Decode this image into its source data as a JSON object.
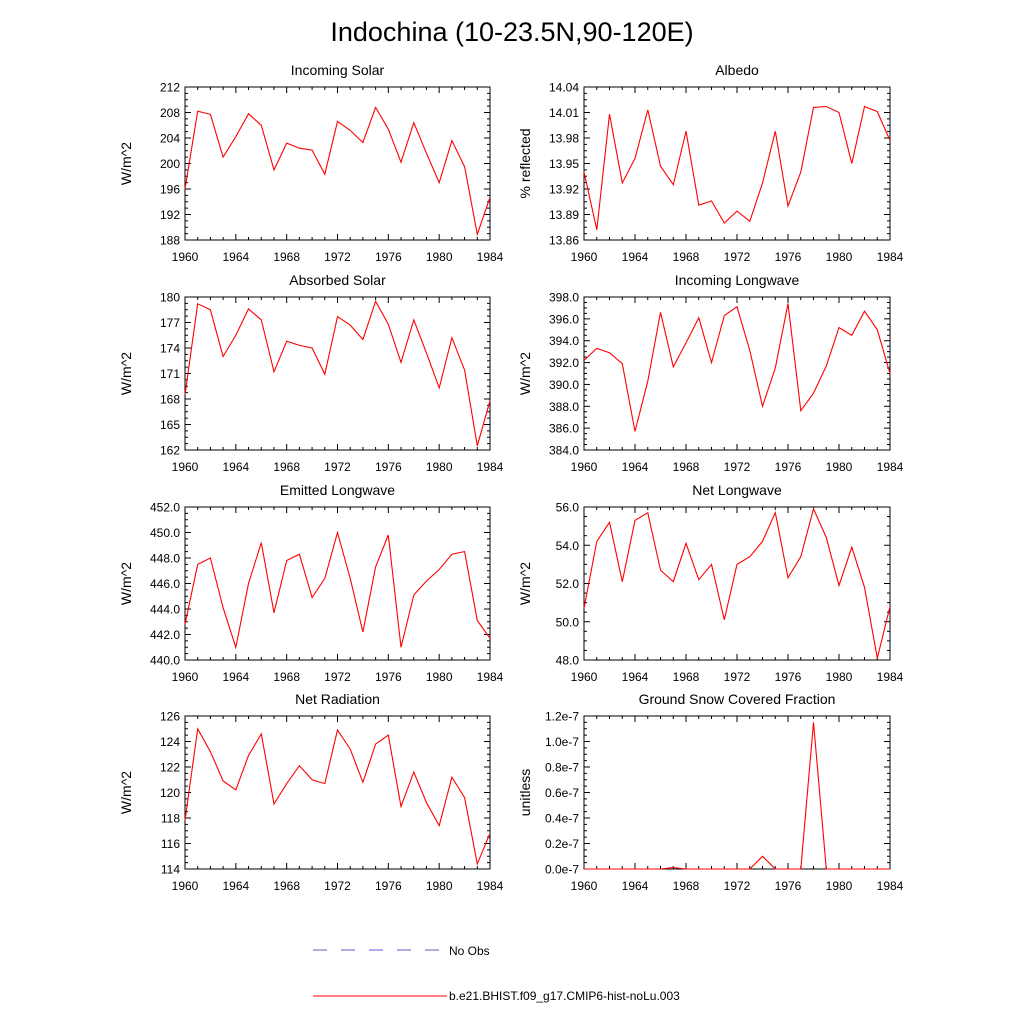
{
  "figure": {
    "title": "Indochina (10-23.5N,90-120E)",
    "legend": [
      {
        "label": "No Obs",
        "color": "#5a5ad2",
        "dash": "dashed"
      },
      {
        "label": "b.e21.BHIST.f09_g17.CMIP6-hist-noLu.003",
        "color": "#ff0000",
        "dash": "solid"
      }
    ]
  },
  "chart_data": [
    {
      "type": "line",
      "title": "Incoming Solar",
      "ylabel": "W/m^2",
      "xlabel": "",
      "xlim": [
        1960,
        1984
      ],
      "ylim": [
        188,
        212
      ],
      "xticks": [
        "1960",
        "1964",
        "1968",
        "1972",
        "1976",
        "1980",
        "1984"
      ],
      "yticks": [
        "188",
        "192",
        "196",
        "200",
        "204",
        "208",
        "212"
      ],
      "x": [
        1960,
        1961,
        1962,
        1963,
        1964,
        1965,
        1966,
        1967,
        1968,
        1969,
        1970,
        1971,
        1972,
        1973,
        1974,
        1975,
        1976,
        1977,
        1978,
        1979,
        1980,
        1981,
        1982,
        1983,
        1984
      ],
      "series": [
        {
          "name": "b.e21.BHIST.f09_g17.CMIP6-hist-noLu.003",
          "color": "#ff0000",
          "values": [
            196.0,
            208.2,
            207.7,
            201.0,
            204.2,
            207.8,
            206.0,
            199.0,
            203.2,
            202.4,
            202.1,
            198.3,
            206.6,
            205.2,
            203.3,
            208.8,
            205.4,
            200.2,
            206.4,
            201.6,
            197.0,
            203.6,
            199.5,
            188.9,
            194.7
          ]
        }
      ]
    },
    {
      "type": "line",
      "title": "Albedo",
      "ylabel": "% reflected",
      "xlabel": "",
      "xlim": [
        1960,
        1984
      ],
      "ylim": [
        13.86,
        14.04
      ],
      "xticks": [
        "1960",
        "1964",
        "1968",
        "1972",
        "1976",
        "1980",
        "1984"
      ],
      "yticks": [
        "13.86",
        "13.89",
        "13.92",
        "13.95",
        "13.98",
        "14.01",
        "14.04"
      ],
      "x": [
        1960,
        1961,
        1962,
        1963,
        1964,
        1965,
        1966,
        1967,
        1968,
        1969,
        1970,
        1971,
        1972,
        1973,
        1974,
        1975,
        1976,
        1977,
        1978,
        1979,
        1980,
        1981,
        1982,
        1983,
        1984
      ],
      "series": [
        {
          "name": "b.e21.BHIST.f09_g17.CMIP6-hist-noLu.003",
          "color": "#ff0000",
          "values": [
            13.94,
            13.872,
            14.008,
            13.927,
            13.956,
            14.013,
            13.947,
            13.925,
            13.988,
            13.901,
            13.906,
            13.88,
            13.894,
            13.882,
            13.927,
            13.988,
            13.9,
            13.94,
            14.016,
            14.017,
            14.01,
            13.95,
            14.017,
            14.011,
            13.977
          ]
        }
      ]
    },
    {
      "type": "line",
      "title": "Absorbed Solar",
      "ylabel": "W/m^2",
      "xlabel": "",
      "xlim": [
        1960,
        1984
      ],
      "ylim": [
        162,
        180
      ],
      "xticks": [
        "1960",
        "1964",
        "1968",
        "1972",
        "1976",
        "1980",
        "1984"
      ],
      "yticks": [
        "162",
        "165",
        "168",
        "171",
        "174",
        "177",
        "180"
      ],
      "x": [
        1960,
        1961,
        1962,
        1963,
        1964,
        1965,
        1966,
        1967,
        1968,
        1969,
        1970,
        1971,
        1972,
        1973,
        1974,
        1975,
        1976,
        1977,
        1978,
        1979,
        1980,
        1981,
        1982,
        1983,
        1984
      ],
      "series": [
        {
          "name": "b.e21.BHIST.f09_g17.CMIP6-hist-noLu.003",
          "color": "#ff0000",
          "values": [
            168.5,
            179.2,
            178.5,
            173.0,
            175.5,
            178.6,
            177.3,
            171.2,
            174.8,
            174.3,
            174.0,
            170.9,
            177.7,
            176.7,
            175.0,
            179.5,
            176.8,
            172.3,
            177.3,
            173.4,
            169.3,
            175.2,
            171.4,
            162.5,
            167.8
          ]
        }
      ]
    },
    {
      "type": "line",
      "title": "Incoming Longwave",
      "ylabel": "W/m^2",
      "xlabel": "",
      "xlim": [
        1960,
        1984
      ],
      "ylim": [
        384.0,
        398.0
      ],
      "xticks": [
        "1960",
        "1964",
        "1968",
        "1972",
        "1976",
        "1980",
        "1984"
      ],
      "yticks": [
        "384.0",
        "386.0",
        "388.0",
        "390.0",
        "392.0",
        "394.0",
        "396.0",
        "398.0"
      ],
      "x": [
        1960,
        1961,
        1962,
        1963,
        1964,
        1965,
        1966,
        1967,
        1968,
        1969,
        1970,
        1971,
        1972,
        1973,
        1974,
        1975,
        1976,
        1977,
        1978,
        1979,
        1980,
        1981,
        1982,
        1983,
        1984
      ],
      "series": [
        {
          "name": "b.e21.BHIST.f09_g17.CMIP6-hist-noLu.003",
          "color": "#ff0000",
          "values": [
            392.2,
            393.3,
            392.9,
            391.9,
            385.7,
            390.3,
            396.6,
            391.6,
            393.8,
            396.1,
            392.0,
            396.3,
            397.1,
            393.1,
            388.0,
            391.5,
            397.4,
            387.6,
            389.2,
            391.7,
            395.2,
            394.5,
            396.7,
            395.0,
            391.0
          ]
        }
      ]
    },
    {
      "type": "line",
      "title": "Emitted Longwave",
      "ylabel": "W/m^2",
      "xlabel": "",
      "xlim": [
        1960,
        1984
      ],
      "ylim": [
        440.0,
        452.0
      ],
      "xticks": [
        "1960",
        "1964",
        "1968",
        "1972",
        "1976",
        "1980",
        "1984"
      ],
      "yticks": [
        "440.0",
        "442.0",
        "444.0",
        "446.0",
        "448.0",
        "450.0",
        "452.0"
      ],
      "x": [
        1960,
        1961,
        1962,
        1963,
        1964,
        1965,
        1966,
        1967,
        1968,
        1969,
        1970,
        1971,
        1972,
        1973,
        1974,
        1975,
        1976,
        1977,
        1978,
        1979,
        1980,
        1981,
        1982,
        1983,
        1984
      ],
      "series": [
        {
          "name": "b.e21.BHIST.f09_g17.CMIP6-hist-noLu.003",
          "color": "#ff0000",
          "values": [
            442.8,
            447.5,
            448.0,
            444.1,
            441.0,
            446.0,
            449.2,
            443.7,
            447.8,
            448.3,
            444.9,
            446.4,
            450.0,
            446.4,
            442.2,
            447.3,
            449.8,
            441.0,
            445.1,
            446.2,
            447.1,
            448.3,
            448.5,
            443.1,
            441.7
          ]
        }
      ]
    },
    {
      "type": "line",
      "title": "Net Longwave",
      "ylabel": "W/m^2",
      "xlabel": "",
      "xlim": [
        1960,
        1984
      ],
      "ylim": [
        48.0,
        56.0
      ],
      "xticks": [
        "1960",
        "1964",
        "1968",
        "1972",
        "1976",
        "1980",
        "1984"
      ],
      "yticks": [
        "48.0",
        "50.0",
        "52.0",
        "54.0",
        "56.0"
      ],
      "x": [
        1960,
        1961,
        1962,
        1963,
        1964,
        1965,
        1966,
        1967,
        1968,
        1969,
        1970,
        1971,
        1972,
        1973,
        1974,
        1975,
        1976,
        1977,
        1978,
        1979,
        1980,
        1981,
        1982,
        1983,
        1984
      ],
      "series": [
        {
          "name": "b.e21.BHIST.f09_g17.CMIP6-hist-noLu.003",
          "color": "#ff0000",
          "values": [
            50.7,
            54.2,
            55.2,
            52.1,
            55.3,
            55.7,
            52.7,
            52.1,
            54.1,
            52.2,
            53.0,
            50.1,
            53.0,
            53.4,
            54.2,
            55.7,
            52.3,
            53.4,
            55.9,
            54.4,
            51.9,
            53.9,
            51.8,
            48.1,
            50.8
          ]
        }
      ]
    },
    {
      "type": "line",
      "title": "Net Radiation",
      "ylabel": "W/m^2",
      "xlabel": "",
      "xlim": [
        1960,
        1984
      ],
      "ylim": [
        114,
        126
      ],
      "xticks": [
        "1960",
        "1964",
        "1968",
        "1972",
        "1976",
        "1980",
        "1984"
      ],
      "yticks": [
        "114",
        "116",
        "118",
        "120",
        "122",
        "124",
        "126"
      ],
      "x": [
        1960,
        1961,
        1962,
        1963,
        1964,
        1965,
        1966,
        1967,
        1968,
        1969,
        1970,
        1971,
        1972,
        1973,
        1974,
        1975,
        1976,
        1977,
        1978,
        1979,
        1980,
        1981,
        1982,
        1983,
        1984
      ],
      "series": [
        {
          "name": "b.e21.BHIST.f09_g17.CMIP6-hist-noLu.003",
          "color": "#ff0000",
          "values": [
            117.8,
            125.0,
            123.2,
            120.9,
            120.2,
            122.9,
            124.6,
            119.1,
            120.7,
            122.1,
            121.0,
            120.7,
            124.9,
            123.4,
            120.8,
            123.8,
            124.5,
            118.9,
            121.6,
            119.2,
            117.4,
            121.2,
            119.6,
            114.4,
            116.8
          ]
        }
      ]
    },
    {
      "type": "line",
      "title": "Ground Snow Covered Fraction",
      "ylabel": "unitless",
      "xlabel": "",
      "xlim": [
        1960,
        1984
      ],
      "ylim": [
        0,
        1.2e-07
      ],
      "xticks": [
        "1960",
        "1964",
        "1968",
        "1972",
        "1976",
        "1980",
        "1984"
      ],
      "yticks": [
        "0.0e-7",
        "0.2e-7",
        "0.4e-7",
        "0.6e-7",
        "0.8e-7",
        "1.0e-7",
        "1.2e-7"
      ],
      "x": [
        1960,
        1961,
        1962,
        1963,
        1964,
        1965,
        1966,
        1967,
        1968,
        1969,
        1970,
        1971,
        1972,
        1973,
        1974,
        1975,
        1976,
        1977,
        1978,
        1979,
        1980,
        1981,
        1982,
        1983,
        1984
      ],
      "series": [
        {
          "name": "b.e21.BHIST.f09_g17.CMIP6-hist-noLu.003",
          "color": "#ff0000",
          "values": [
            0,
            0,
            0,
            0,
            0,
            0,
            0,
            1.2e-09,
            0,
            0,
            0,
            0,
            0,
            0,
            1e-08,
            0,
            0,
            0,
            1.15e-07,
            0,
            0,
            0,
            0,
            0,
            0
          ]
        }
      ]
    }
  ]
}
